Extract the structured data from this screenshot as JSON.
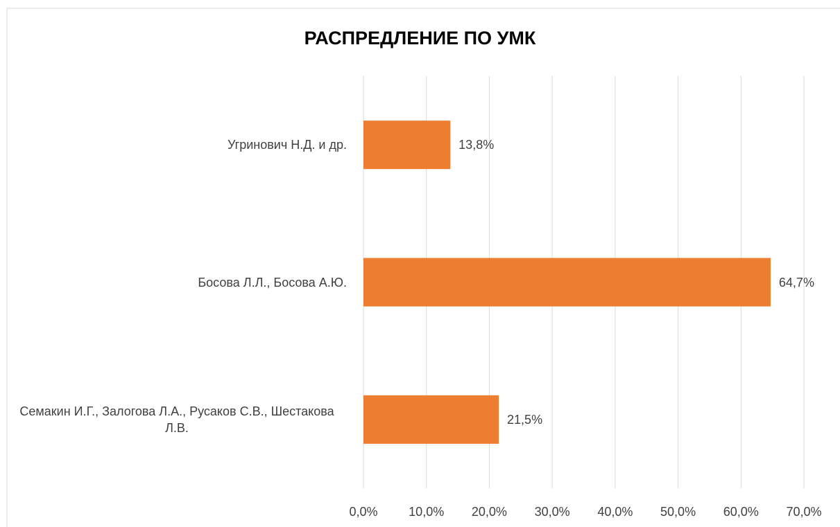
{
  "chart_data": {
    "type": "barh",
    "title": "РАСПРЕДЛЕНИЕ  ПО УМК",
    "categories": [
      "Угринович Н.Д. и др.",
      "Босова Л.Л., Босова А.Ю.",
      "Семакин И.Г., Залогова Л.А., Русаков С.В., Шестакова Л.В."
    ],
    "values": [
      13.8,
      64.7,
      21.5
    ],
    "value_labels": [
      "13,8%",
      "64,7%",
      "21,5%"
    ],
    "color": "#ed7d31",
    "xlim": [
      0,
      70
    ],
    "xticks": [
      {
        "value": 0,
        "label": "0,0%"
      },
      {
        "value": 10,
        "label": "10,0%"
      },
      {
        "value": 20,
        "label": "20,0%"
      },
      {
        "value": 30,
        "label": "30,0%"
      },
      {
        "value": 40,
        "label": "40,0%"
      },
      {
        "value": 50,
        "label": "50,0%"
      },
      {
        "value": 60,
        "label": "60,0%"
      },
      {
        "value": 70,
        "label": "70,0%"
      }
    ],
    "grid": true
  }
}
